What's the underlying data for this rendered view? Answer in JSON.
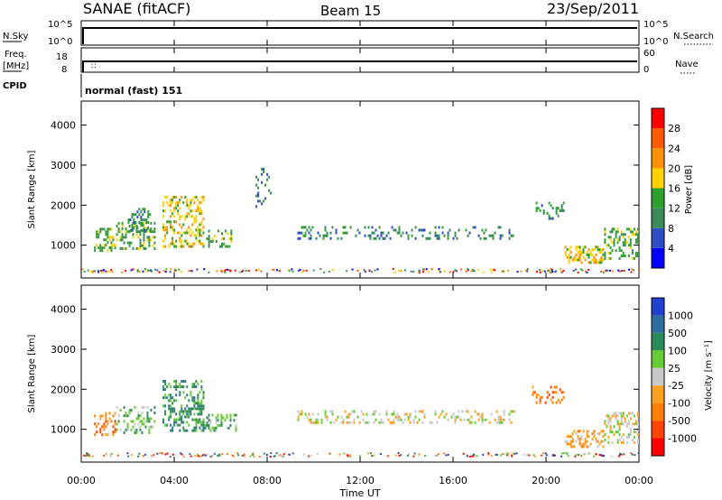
{
  "header": {
    "title": "SANAE (fitACF)",
    "beam": "Beam 15",
    "date": "23/Sep/2011"
  },
  "top_panels": {
    "nsky_label": "N.Sky",
    "nsky_ticks": [
      "10^5",
      "10^0"
    ],
    "nsearch_label": "N.Search",
    "nsearch_ticks": [
      "10^5",
      "10^0"
    ],
    "freq_label_line1": "Freq.",
    "freq_label_line2": "[MHz]",
    "freq_ticks": [
      "18",
      "8"
    ],
    "nave_label": "Nave",
    "nave_ticks": [
      "60",
      "0"
    ],
    "cpid_label": "CPID",
    "cpid_text": "normal (fast) 151"
  },
  "colors": {
    "power": [
      "#0000ff",
      "#2d4ec2",
      "#3a8a5a",
      "#2ea02e",
      "#ffd200",
      "#ff9000",
      "#ff5a00",
      "#ff0000"
    ],
    "velocity": [
      "#2040d0",
      "#2e6e9e",
      "#2a8a5a",
      "#66cc33",
      "#c8c8c8",
      "#ffa020",
      "#ff8000",
      "#ff4400",
      "#ff0000"
    ],
    "ground_scatter": "#c8c8c8"
  },
  "chart_data": [
    {
      "type": "heatmap",
      "name": "power",
      "ylabel": "Slant Range [km]",
      "yticks": [
        "1000",
        "2000",
        "3000",
        "4000"
      ],
      "ylim": [
        180,
        4600
      ],
      "xlim": [
        0,
        24
      ],
      "colorbar_label": "Power [dB]",
      "colorbar_ticks": [
        "4",
        "8",
        "12",
        "16",
        "20",
        "24",
        "28"
      ],
      "colorbar_range": [
        0,
        30
      ],
      "regions": [
        {
          "t0": 0.55,
          "t1": 1.5,
          "r0": 900,
          "r1": 1500,
          "level": 3,
          "density": 0.45
        },
        {
          "t0": 1.5,
          "t1": 3.2,
          "r0": 950,
          "r1": 1650,
          "level": 3,
          "density": 0.35
        },
        {
          "t0": 2.0,
          "t1": 3.0,
          "r0": 1400,
          "r1": 2000,
          "level": 2,
          "density": 0.3
        },
        {
          "t0": 3.5,
          "t1": 5.3,
          "r0": 1000,
          "r1": 2300,
          "level": 4,
          "density": 0.4
        },
        {
          "t0": 5.3,
          "t1": 6.5,
          "r0": 1000,
          "r1": 1450,
          "level": 3,
          "density": 0.3
        },
        {
          "t0": 7.5,
          "t1": 8.2,
          "r0": 2000,
          "r1": 3000,
          "level": 2,
          "density": 0.15
        },
        {
          "t0": 9.3,
          "t1": 18.7,
          "r0": 1200,
          "r1": 1550,
          "level": 2,
          "density": 0.22
        },
        {
          "t0": 19.4,
          "t1": 20.8,
          "r0": 1700,
          "r1": 2150,
          "level": 2,
          "density": 0.3
        },
        {
          "t0": 20.8,
          "t1": 22.5,
          "r0": 600,
          "r1": 1050,
          "level": 4,
          "density": 0.45
        },
        {
          "t0": 22.5,
          "t1": 24.0,
          "r0": 700,
          "r1": 1500,
          "level": 3,
          "density": 0.4
        }
      ]
    },
    {
      "type": "heatmap",
      "name": "velocity",
      "ylabel": "Slant Range [km]",
      "yticks": [
        "1000",
        "2000",
        "3000",
        "4000"
      ],
      "ylim": [
        180,
        4600
      ],
      "xlim": [
        0,
        24
      ],
      "xticks": [
        "00:00",
        "04:00",
        "08:00",
        "12:00",
        "16:00",
        "20:00",
        "00:00"
      ],
      "xlabel": "Time UT",
      "colorbar_label": "Velocity [m s⁻¹]",
      "colorbar_ticks": [
        "1000",
        "500",
        "100",
        "25",
        "-25",
        "-100",
        "-500",
        "-1000"
      ],
      "regions": [
        {
          "t0": 0.55,
          "t1": 1.5,
          "r0": 900,
          "r1": 1500,
          "level": 6,
          "density": 0.45
        },
        {
          "t0": 1.5,
          "t1": 3.2,
          "r0": 950,
          "r1": 1650,
          "level": 3,
          "density": 0.35
        },
        {
          "t0": 3.5,
          "t1": 5.3,
          "r0": 1000,
          "r1": 2300,
          "level": 2,
          "density": 0.4
        },
        {
          "t0": 5.3,
          "t1": 6.7,
          "r0": 1000,
          "r1": 1450,
          "level": 3,
          "density": 0.35
        },
        {
          "t0": 9.3,
          "t1": 18.7,
          "r0": 1200,
          "r1": 1550,
          "level": 4,
          "density": 0.25
        },
        {
          "t0": 19.4,
          "t1": 20.8,
          "r0": 1700,
          "r1": 2150,
          "level": 6,
          "density": 0.3
        },
        {
          "t0": 20.8,
          "t1": 22.5,
          "r0": 600,
          "r1": 1050,
          "level": 5,
          "density": 0.4
        },
        {
          "t0": 22.5,
          "t1": 24.0,
          "r0": 700,
          "r1": 1500,
          "level": 4,
          "density": 0.35
        }
      ]
    }
  ]
}
